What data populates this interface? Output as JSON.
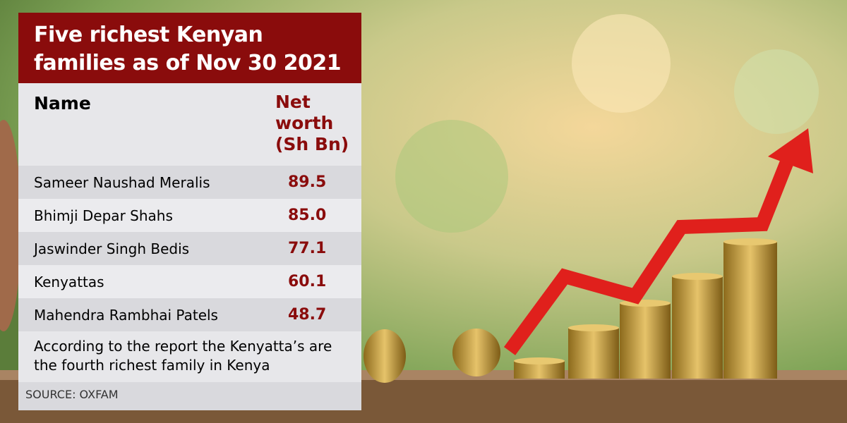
{
  "title": "Five richest Kenyan families as of Nov 30 2021",
  "table": {
    "header": [
      "Name",
      "Net worth (Sh Bn)"
    ],
    "rows": [
      [
        "Sameer Naushad Meralis",
        "89.5"
      ],
      [
        "Bhimji Depar Shahs",
        "85.0"
      ],
      [
        "Jaswinder Singh Bedis",
        "77.1"
      ],
      [
        "Kenyattas",
        "60.1"
      ],
      [
        "Mahendra Rambhai Patels",
        "48.7"
      ]
    ]
  },
  "note": "According to the report the Kenyatta’s are the fourth richest family in Kenya",
  "source": "SOURCE:  OXFAM"
}
